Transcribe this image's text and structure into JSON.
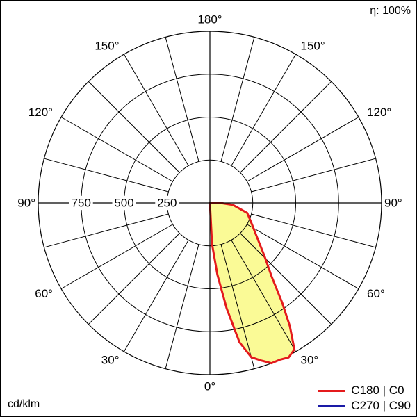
{
  "efficiency_label": "η: 100%",
  "unit_label": "cd/klm",
  "chart_data": {
    "type": "polar",
    "title": "",
    "radial_ticks": [
      250,
      500,
      750
    ],
    "radial_max": 1000,
    "angle_step_deg": 15,
    "angle_labels": [
      {
        "text": "180°",
        "angle": 180,
        "side": "center"
      },
      {
        "text": "150°",
        "angle": 150,
        "side": "left"
      },
      {
        "text": "150°",
        "angle": 150,
        "side": "right"
      },
      {
        "text": "120°",
        "angle": 120,
        "side": "left"
      },
      {
        "text": "120°",
        "angle": 120,
        "side": "right"
      },
      {
        "text": "90°",
        "angle": 90,
        "side": "left"
      },
      {
        "text": "90°",
        "angle": 90,
        "side": "right"
      },
      {
        "text": "60°",
        "angle": 60,
        "side": "left"
      },
      {
        "text": "60°",
        "angle": 60,
        "side": "right"
      },
      {
        "text": "30°",
        "angle": 30,
        "side": "left"
      },
      {
        "text": "30°",
        "angle": 30,
        "side": "right"
      },
      {
        "text": "0°",
        "angle": 0,
        "side": "center"
      }
    ],
    "series": [
      {
        "name": "C180 | C0",
        "color": "#e41a1c",
        "fill": "#fafa96",
        "points": [
          {
            "angle": 0,
            "value": 0
          },
          {
            "angle": 3,
            "value": 240
          },
          {
            "angle": 6,
            "value": 420
          },
          {
            "angle": 9,
            "value": 620
          },
          {
            "angle": 12,
            "value": 830
          },
          {
            "angle": 15,
            "value": 930
          },
          {
            "angle": 18,
            "value": 965
          },
          {
            "angle": 21,
            "value": 1000
          },
          {
            "angle": 24,
            "value": 1000
          },
          {
            "angle": 27,
            "value": 1010
          },
          {
            "angle": 30,
            "value": 985
          },
          {
            "angle": 33,
            "value": 855
          },
          {
            "angle": 36,
            "value": 715
          },
          {
            "angle": 40,
            "value": 560
          },
          {
            "angle": 46,
            "value": 440
          },
          {
            "angle": 55,
            "value": 330
          },
          {
            "angle": 65,
            "value": 265
          },
          {
            "angle": 75,
            "value": 225
          },
          {
            "angle": 85,
            "value": 135
          },
          {
            "angle": 90,
            "value": 60
          },
          {
            "angle": 100,
            "value": 0
          }
        ]
      },
      {
        "name": "C270 | C90",
        "color": "#1a1aa6",
        "points": []
      }
    ]
  }
}
